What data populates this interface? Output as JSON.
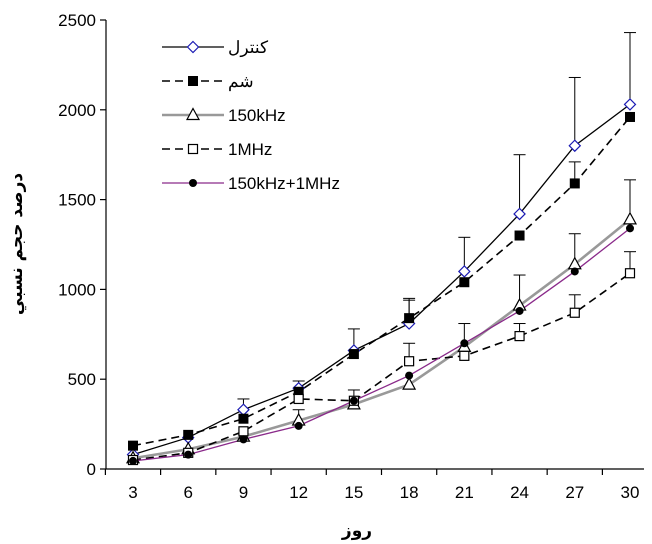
{
  "chart_data": {
    "type": "line",
    "title": "",
    "xlabel": "روز",
    "ylabel": "درصد حجم نسبي",
    "x": [
      3,
      6,
      9,
      12,
      15,
      18,
      21,
      24,
      27,
      30
    ],
    "ylim": [
      0,
      2500
    ],
    "yticks": [
      0,
      500,
      1000,
      1500,
      2000,
      2500
    ],
    "grid": false,
    "legend_position": "top-left",
    "series": [
      {
        "name": "کنترل",
        "values": [
          80,
          175,
          330,
          450,
          660,
          810,
          1100,
          1420,
          1800,
          2030
        ],
        "error": [
          0,
          0,
          60,
          40,
          120,
          140,
          190,
          330,
          380,
          400
        ],
        "color": "#000000",
        "dash": "",
        "marker": "diamond-open",
        "marker_color": "#1c1cb4"
      },
      {
        "name": "شم",
        "values": [
          130,
          190,
          280,
          430,
          640,
          840,
          1040,
          1300,
          1590,
          1960
        ],
        "error": [
          0,
          0,
          0,
          0,
          0,
          100,
          0,
          0,
          120,
          0
        ],
        "color": "#000000",
        "dash": "8,5",
        "marker": "square-filled",
        "marker_color": "#000000"
      },
      {
        "name": "150kHz",
        "values": [
          60,
          110,
          180,
          270,
          360,
          470,
          680,
          910,
          1140,
          1390
        ],
        "error": [
          0,
          0,
          0,
          60,
          0,
          0,
          0,
          170,
          170,
          220
        ],
        "color": "#999999",
        "dash": "",
        "marker": "triangle-open",
        "marker_color": "#000000"
      },
      {
        "name": "1MHz",
        "values": [
          50,
          90,
          210,
          390,
          380,
          600,
          630,
          740,
          870,
          1090
        ],
        "error": [
          0,
          0,
          0,
          0,
          60,
          100,
          0,
          70,
          100,
          120
        ],
        "color": "#000000",
        "dash": "8,5",
        "marker": "square-open",
        "marker_color": "#000000"
      },
      {
        "name": "150kHz+1MHz",
        "values": [
          45,
          80,
          165,
          240,
          380,
          520,
          700,
          880,
          1100,
          1340
        ],
        "error": [
          0,
          0,
          30,
          0,
          0,
          0,
          110,
          0,
          0,
          0
        ],
        "color": "#8a2a8a",
        "dash": "",
        "marker": "circle-filled",
        "marker_color": "#000000"
      }
    ]
  }
}
